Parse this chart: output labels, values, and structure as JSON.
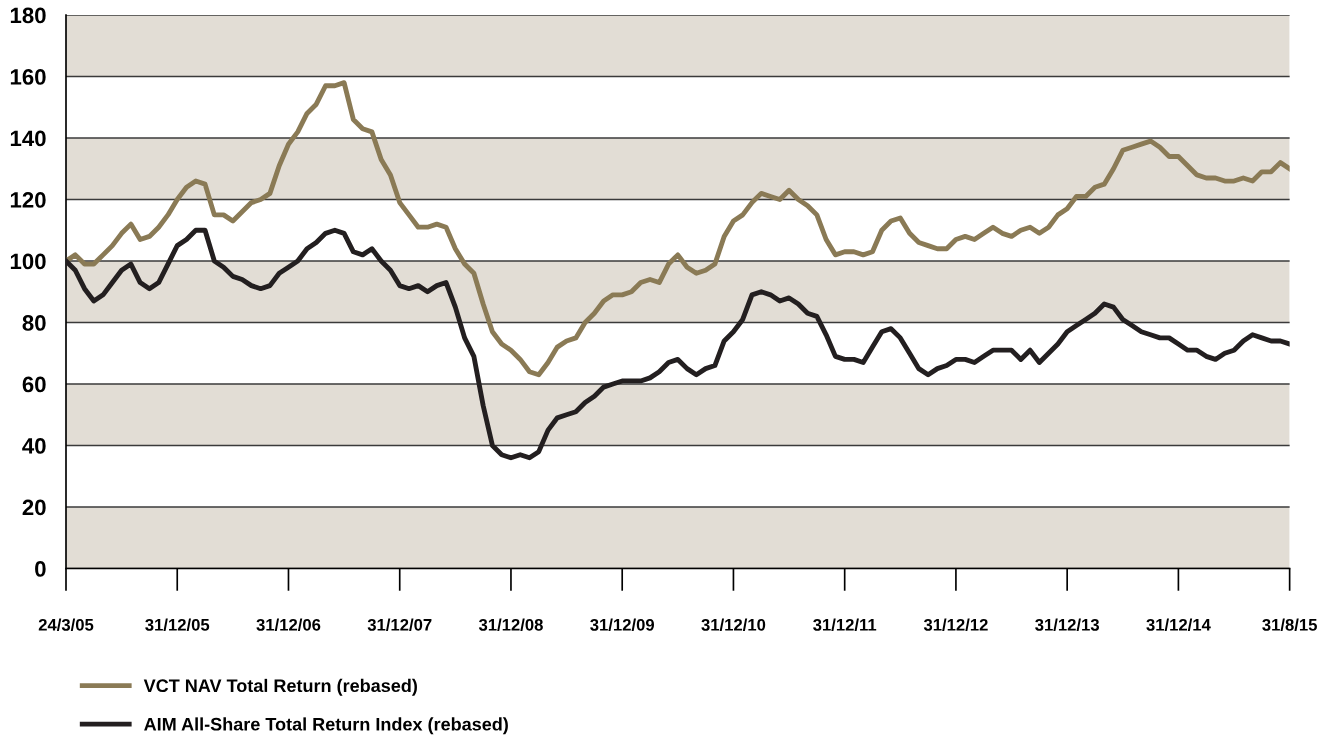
{
  "chart_data": {
    "type": "line",
    "categories": [
      "24/3/05",
      null,
      null,
      null,
      null,
      null,
      null,
      null,
      null,
      null,
      null,
      null,
      "31/12/05",
      null,
      null,
      null,
      null,
      null,
      null,
      null,
      null,
      null,
      null,
      null,
      "31/12/06",
      null,
      null,
      null,
      null,
      null,
      null,
      null,
      null,
      null,
      null,
      null,
      "31/12/07",
      null,
      null,
      null,
      null,
      null,
      null,
      null,
      null,
      null,
      null,
      null,
      "31/12/08",
      null,
      null,
      null,
      null,
      null,
      null,
      null,
      null,
      null,
      null,
      null,
      "31/12/09",
      null,
      null,
      null,
      null,
      null,
      null,
      null,
      null,
      null,
      null,
      null,
      "31/12/10",
      null,
      null,
      null,
      null,
      null,
      null,
      null,
      null,
      null,
      null,
      null,
      "31/12/11",
      null,
      null,
      null,
      null,
      null,
      null,
      null,
      null,
      null,
      null,
      null,
      "31/12/12",
      null,
      null,
      null,
      null,
      null,
      null,
      null,
      null,
      null,
      null,
      null,
      "31/12/13",
      null,
      null,
      null,
      null,
      null,
      null,
      null,
      null,
      null,
      null,
      null,
      "31/12/14",
      null,
      null,
      null,
      null,
      null,
      null,
      null,
      null,
      null,
      null,
      null,
      "31/8/15"
    ],
    "ylim": [
      0,
      180
    ],
    "yticks": [
      0,
      20,
      40,
      60,
      80,
      100,
      120,
      140,
      160,
      180
    ],
    "grid": "y",
    "legend": "bottom",
    "marker": "none",
    "line_style": "solid",
    "bands": [
      {
        "axis": "y",
        "from": 0,
        "to": 20,
        "color": "#e2ddd5"
      },
      {
        "axis": "y",
        "from": 40,
        "to": 60,
        "color": "#e2ddd5"
      },
      {
        "axis": "y",
        "from": 80,
        "to": 100,
        "color": "#e2ddd5"
      },
      {
        "axis": "y",
        "from": 120,
        "to": 140,
        "color": "#e2ddd5"
      },
      {
        "axis": "y",
        "from": 160,
        "to": 180,
        "color": "#e2ddd5"
      }
    ],
    "series": [
      {
        "name": "VCT NAV Total Return (rebased)",
        "color": "#8a7a55",
        "values": [
          100,
          102,
          99,
          99,
          102,
          105,
          109,
          112,
          107,
          108,
          111,
          115,
          120,
          124,
          126,
          125,
          115,
          115,
          113,
          116,
          119,
          120,
          122,
          131,
          138,
          142,
          148,
          151,
          157,
          157,
          158,
          146,
          143,
          142,
          133,
          128,
          119,
          115,
          111,
          111,
          112,
          111,
          104,
          99,
          96,
          86,
          77,
          73,
          71,
          68,
          64,
          63,
          67,
          72,
          74,
          75,
          80,
          83,
          87,
          89,
          89,
          90,
          93,
          94,
          93,
          99,
          102,
          98,
          96,
          97,
          99,
          108,
          113,
          115,
          119,
          122,
          121,
          120,
          123,
          120,
          118,
          115,
          107,
          102,
          103,
          103,
          102,
          103,
          110,
          113,
          114,
          109,
          106,
          105,
          104,
          104,
          107,
          108,
          107,
          109,
          111,
          109,
          108,
          110,
          111,
          109,
          111,
          115,
          117,
          121,
          121,
          124,
          125,
          130,
          136,
          137,
          138,
          139,
          137,
          134,
          134,
          131,
          128,
          127,
          127,
          126,
          126,
          127,
          126,
          129,
          129,
          132,
          130
        ]
      },
      {
        "name": "AIM All-Share Total Return Index (rebased)",
        "color": "#231f20",
        "values": [
          100,
          97,
          91,
          87,
          89,
          93,
          97,
          99,
          93,
          91,
          93,
          99,
          105,
          107,
          110,
          110,
          100,
          98,
          95,
          94,
          92,
          91,
          92,
          96,
          98,
          100,
          104,
          106,
          109,
          110,
          109,
          103,
          102,
          104,
          100,
          97,
          92,
          91,
          92,
          90,
          92,
          93,
          85,
          75,
          69,
          53,
          40,
          37,
          36,
          37,
          36,
          38,
          45,
          49,
          50,
          51,
          54,
          56,
          59,
          60,
          61,
          61,
          61,
          62,
          64,
          67,
          68,
          65,
          63,
          65,
          66,
          74,
          77,
          81,
          89,
          90,
          89,
          87,
          88,
          86,
          83,
          82,
          76,
          69,
          68,
          68,
          67,
          72,
          77,
          78,
          75,
          70,
          65,
          63,
          65,
          66,
          68,
          68,
          67,
          69,
          71,
          71,
          71,
          68,
          71,
          67,
          70,
          73,
          77,
          79,
          81,
          83,
          86,
          85,
          81,
          79,
          77,
          76,
          75,
          75,
          73,
          71,
          71,
          69,
          68,
          70,
          71,
          74,
          76,
          75,
          74,
          74,
          73
        ]
      }
    ]
  }
}
